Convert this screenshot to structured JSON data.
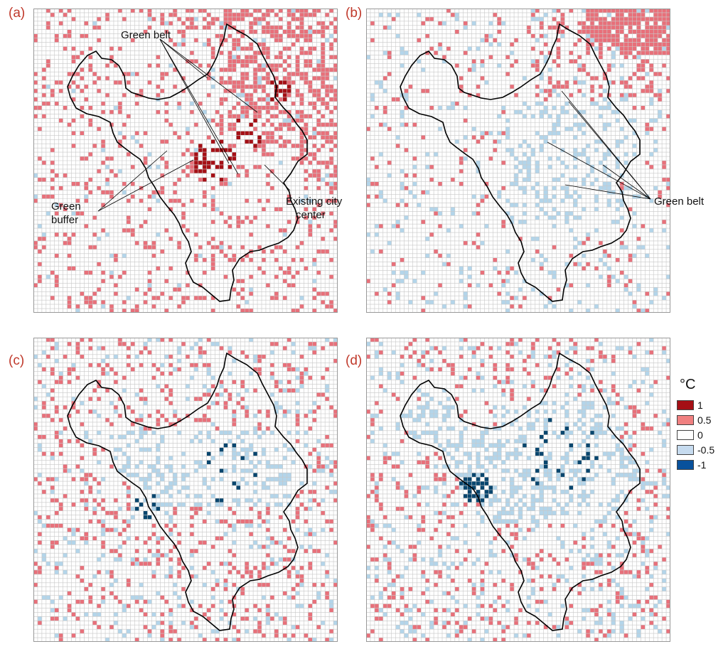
{
  "panels": [
    {
      "label": "(a)"
    },
    {
      "label": "(b)"
    },
    {
      "label": "(c)"
    },
    {
      "label": "(d)"
    }
  ],
  "annotations": {
    "a_green_belt": "Green belt",
    "a_green_buffer_1": "Green",
    "a_green_buffer_2": "buffer",
    "a_city_center_1": "Existing city",
    "a_city_center_2": "center",
    "b_green_belt": "Green belt"
  },
  "legend": {
    "title": "°C",
    "items": [
      {
        "label": "1",
        "color": "#a50f15"
      },
      {
        "label": "0.5",
        "color": "#f08080"
      },
      {
        "label": "0",
        "color": "#ffffff"
      },
      {
        "label": "-0.5",
        "color": "#c6dbef"
      },
      {
        "label": "-1",
        "color": "#08519c"
      }
    ]
  },
  "colors": {
    "grid": "#c8c8c8",
    "boundary": "#000000",
    "warm_strong": "#a50f15",
    "warm": "#e8707a",
    "cool": "#b3d5ea",
    "cool_strong": "#08466e"
  }
}
